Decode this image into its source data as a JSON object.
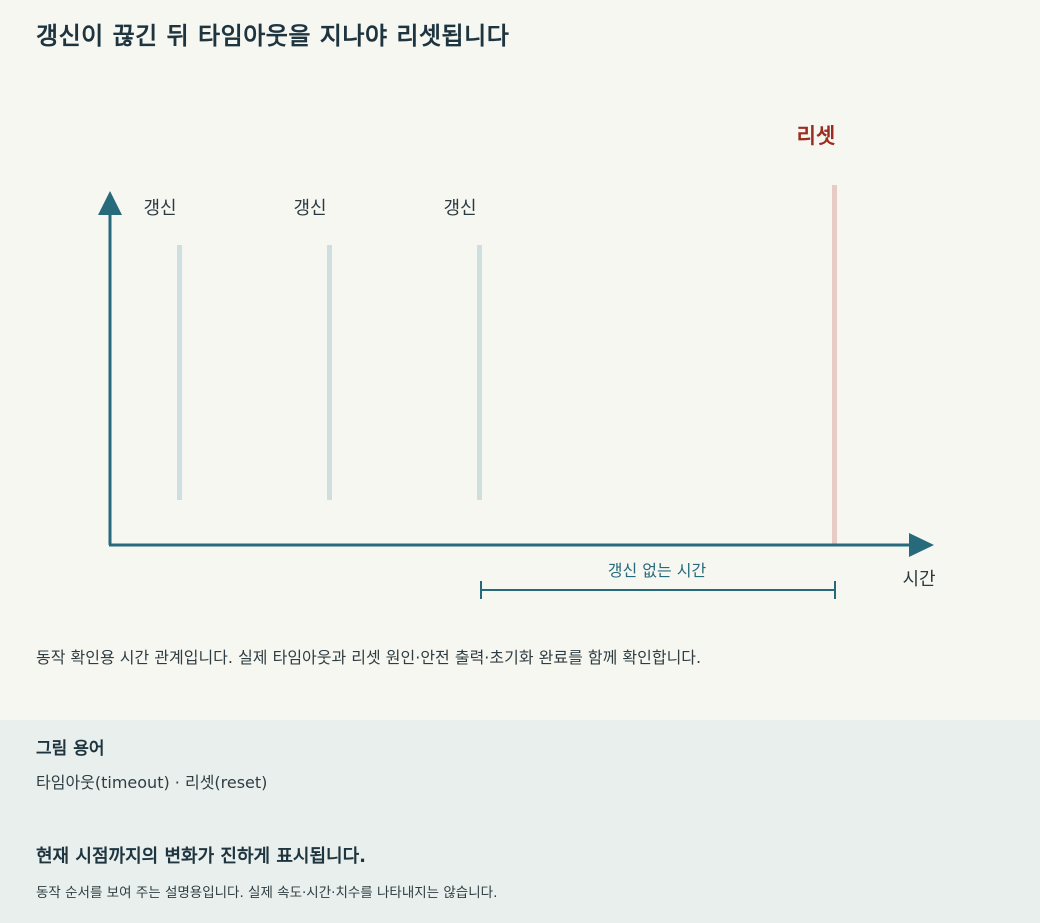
{
  "title": "갱신이 끊긴 뒤 타임아웃을 지나야 리셋됩니다",
  "diagram": {
    "refresh_label": "갱신",
    "refresh_events": [
      "갱신",
      "갱신",
      "갱신"
    ],
    "reset_label": "리셋",
    "gap_label": "갱신 없는 시간",
    "x_axis_label": "시간",
    "colors": {
      "axis": "#276a7c",
      "refresh_marker": "#cfdedf",
      "reset_marker": "#e8cbc2",
      "reset_text": "#9b2c1e"
    }
  },
  "caption": "동작 확인용 시간 관계입니다. 실제 타임아웃과 리셋 원인·안전 출력·초기화 완료를 함께 확인합니다.",
  "glossary": {
    "title": "그림 용어",
    "terms": "타임아웃(timeout) · 리셋(reset)"
  },
  "status": {
    "title": "현재 시점까지의 변화가 진하게 표시됩니다.",
    "note": "동작 순서를 보여 주는 설명용입니다. 실제 속도·시간·치수를 나타내지는 않습니다."
  }
}
